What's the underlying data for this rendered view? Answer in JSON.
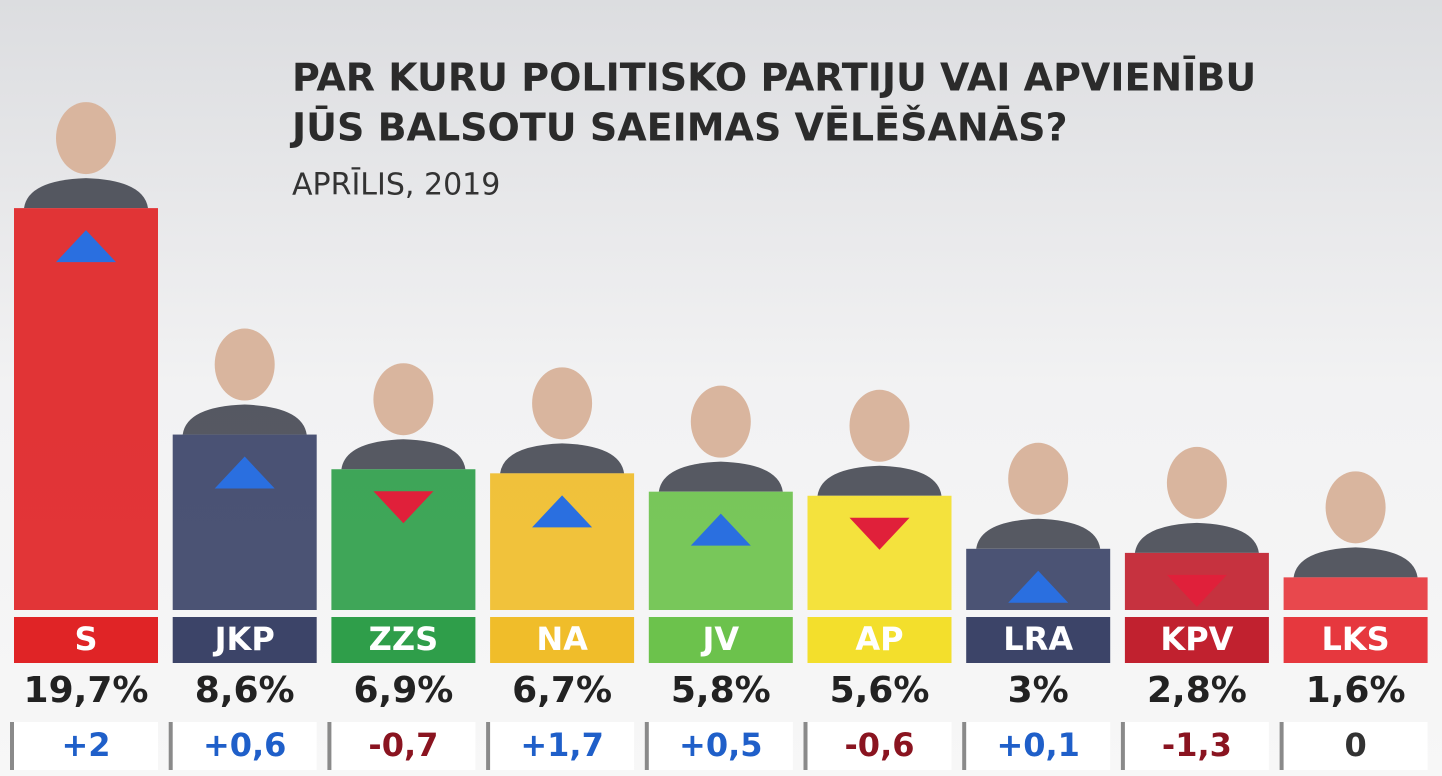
{
  "chart_data": {
    "type": "bar",
    "title": [
      "PAR KURU POLITISKO PARTIJU VAI APVIENĪBU",
      "JŪS BALSOTU SAEIMAS VĒLĒŠANĀS?"
    ],
    "subtitle": "APRĪLIS, 2019",
    "categories": [
      "S",
      "JKP",
      "ZZS",
      "NA",
      "JV",
      "AP",
      "LRA",
      "KPV",
      "LKS"
    ],
    "colors": [
      "#e02426",
      "#3c4468",
      "#2f9e4a",
      "#f0bd2a",
      "#6cc24c",
      "#f3df2c",
      "#3c4468",
      "#c1212f",
      "#e6383e"
    ],
    "values": [
      19.7,
      8.6,
      6.9,
      6.7,
      5.8,
      5.6,
      3,
      2.8,
      1.6
    ],
    "value_labels": [
      "19,7%",
      "8,6%",
      "6,9%",
      "6,7%",
      "5,8%",
      "5,6%",
      "3%",
      "2,8%",
      "1,6%"
    ],
    "change": {
      "values": [
        2,
        0.6,
        -0.7,
        1.7,
        0.5,
        -0.6,
        0.1,
        -1.3,
        0
      ],
      "value_labels": [
        "+2",
        "+0,6",
        "-0,7",
        "+1,7",
        "+0,5",
        "-0,6",
        "+0,1",
        "-1,3",
        "0"
      ]
    }
  }
}
